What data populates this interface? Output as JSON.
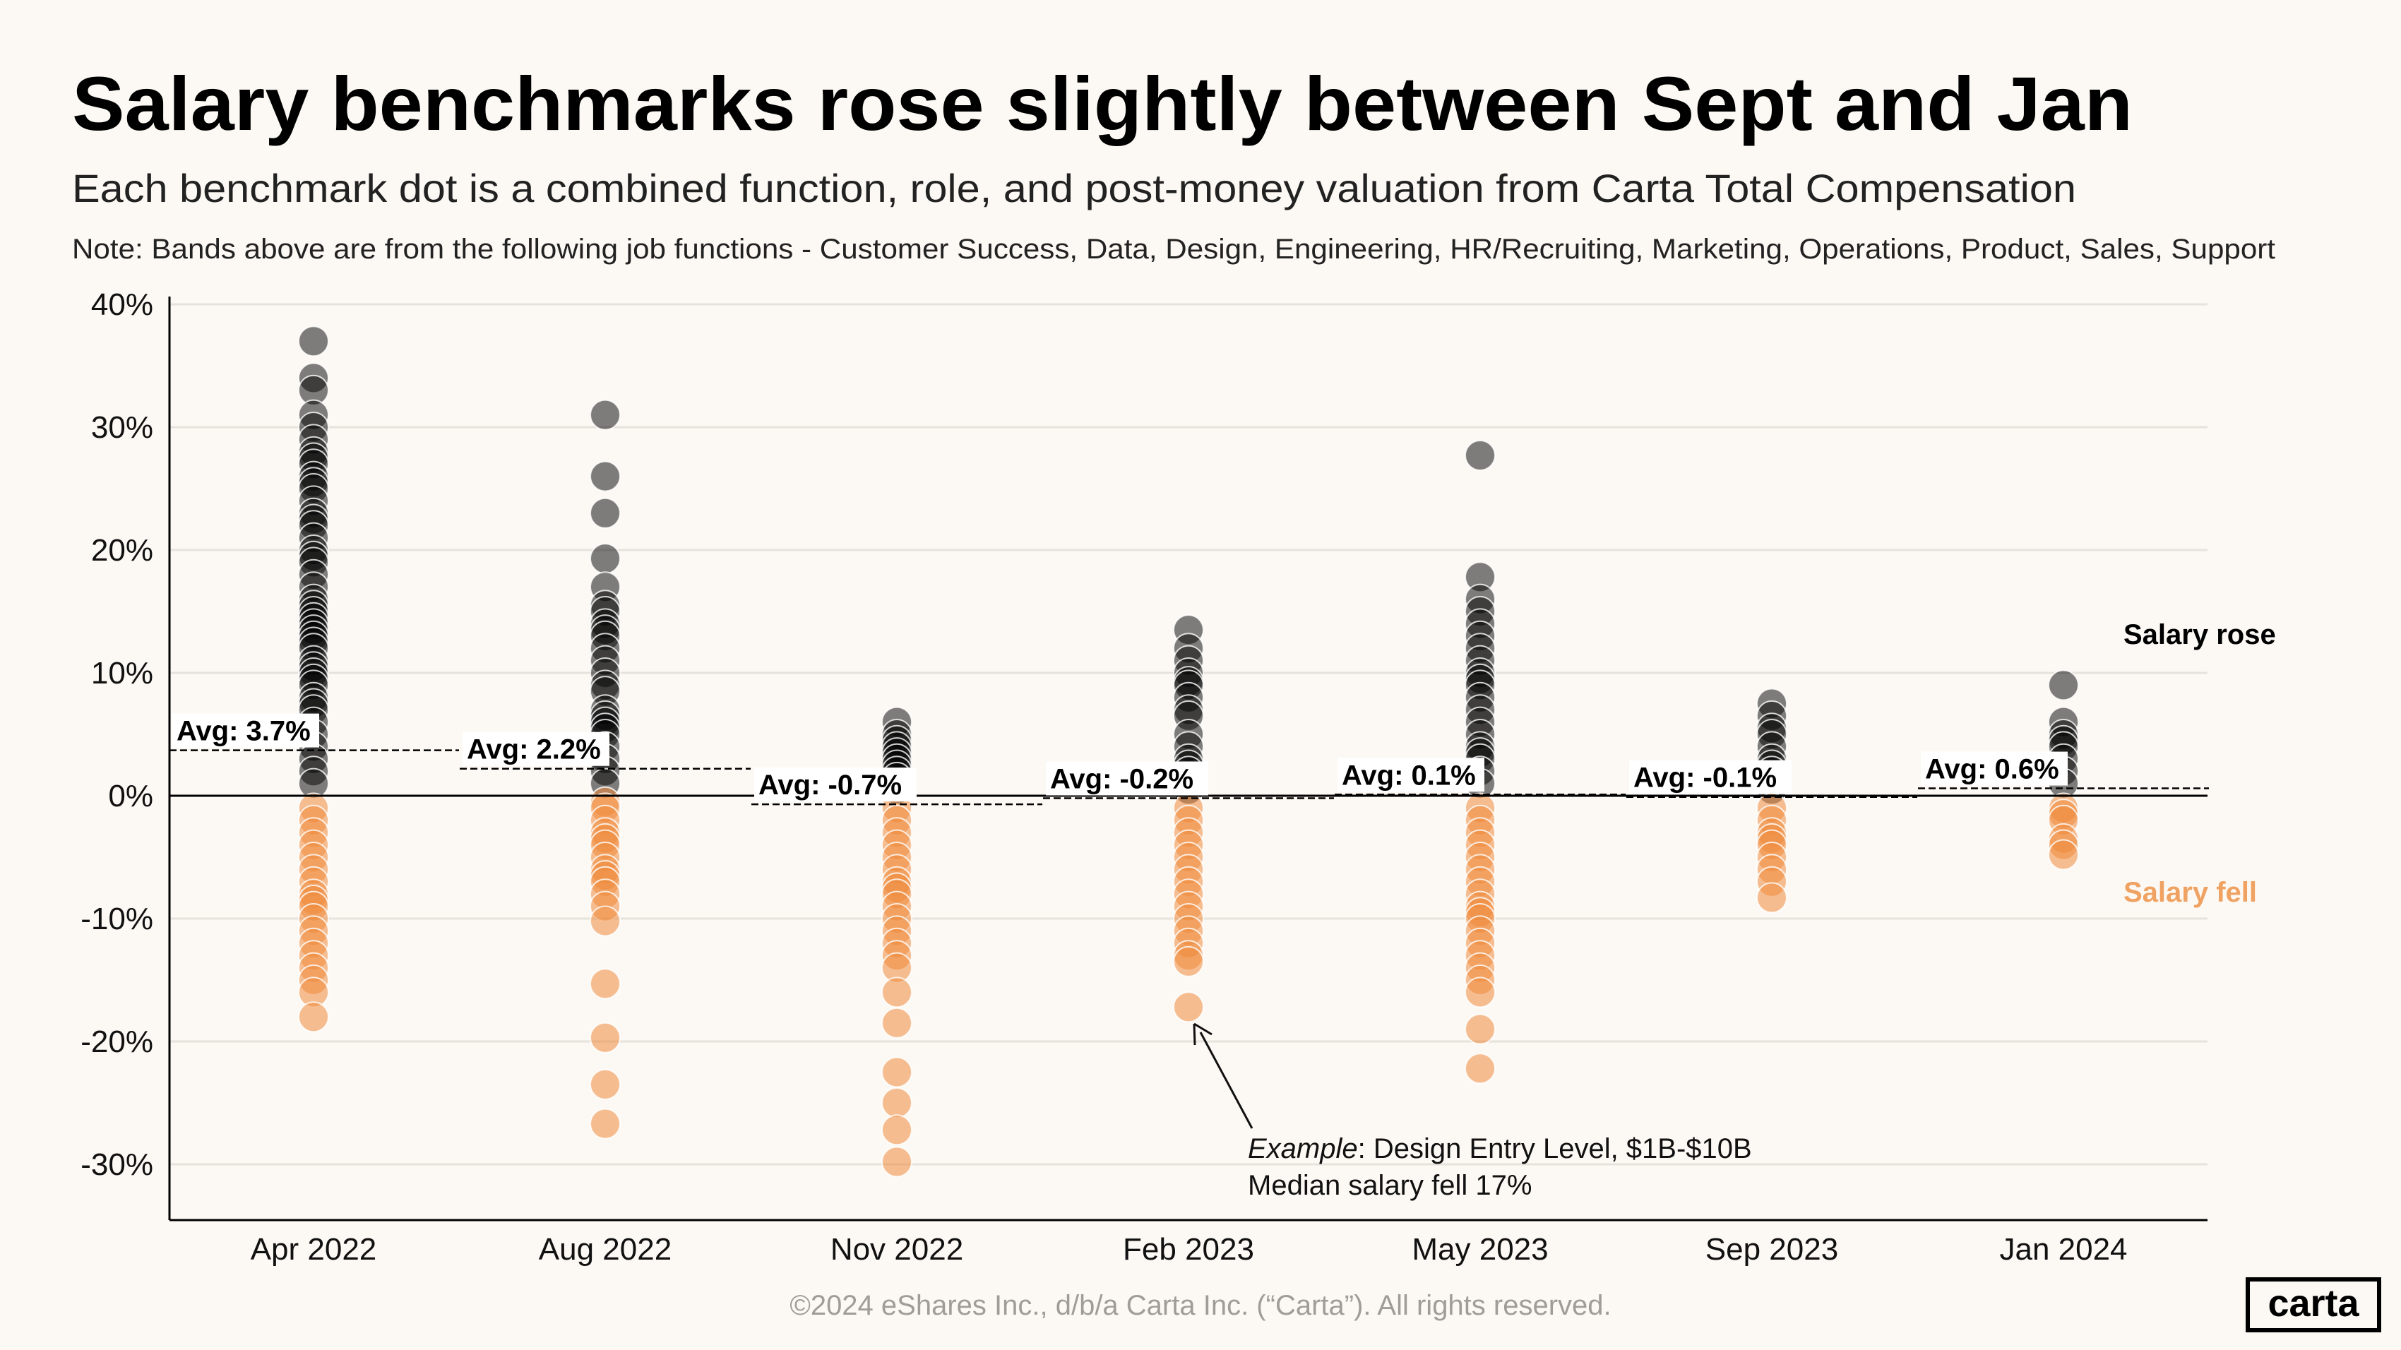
{
  "title": "Salary benchmarks rose slightly between Sept and Jan",
  "subtitle": "Each benchmark dot is a combined function, role, and post-money valuation from Carta Total Compensation",
  "note": "Note:  Bands above are from the following job functions - Customer Success, Data, Design, Engineering, HR/Recruiting, Marketing, Operations, Product,  Sales, Support",
  "copyright": "©2024 eShares Inc., d/b/a Carta Inc. (“Carta”). All rights reserved.",
  "logo": "carta",
  "colors": {
    "rose": "#000000",
    "fell": "#ee8a3c",
    "fell_label": "#f0a262",
    "background": "#fcf9f4"
  },
  "chart_data": {
    "type": "scatter",
    "title": "Salary benchmarks rose slightly between Sept and Jan",
    "ylim": [
      -30,
      40
    ],
    "yticks": [
      40,
      30,
      20,
      10,
      0,
      -10,
      -20,
      -30
    ],
    "ytick_labels": [
      "40%",
      "30%",
      "20%",
      "10%",
      "0%",
      "-10%",
      "-20%",
      "-30%"
    ],
    "grid": true,
    "categories": [
      "Apr 2022",
      "Aug 2022",
      "Nov 2022",
      "Feb 2023",
      "May 2023",
      "Sep 2023",
      "Jan 2024"
    ],
    "averages": [
      3.7,
      2.2,
      -0.7,
      -0.2,
      0.1,
      -0.1,
      0.6
    ],
    "average_labels": [
      "Avg: 3.7%",
      "Avg: 2.2%",
      "Avg: -0.7%",
      "Avg: -0.2%",
      "Avg: 0.1%",
      "Avg: -0.1%",
      "Avg: 0.6%"
    ],
    "values": [
      [
        37,
        34,
        33,
        31,
        30,
        29,
        28,
        27.5,
        27,
        26,
        25.5,
        25,
        24,
        23,
        22.5,
        22,
        21,
        20,
        19.5,
        19,
        18,
        17,
        16,
        15.5,
        15,
        14.5,
        14,
        13.5,
        13,
        12.5,
        12,
        11,
        10.5,
        10,
        9.5,
        9,
        8,
        7.5,
        7,
        6,
        5,
        4,
        3,
        2,
        1,
        -1,
        -2,
        -3,
        -4,
        -5,
        -6,
        -7,
        -8,
        -8.5,
        -9,
        -10,
        -11,
        -12,
        -13,
        -14,
        -15,
        -16,
        -18
      ],
      [
        31,
        26,
        23,
        19.3,
        17,
        15.5,
        15,
        14,
        13.5,
        13,
        12,
        11,
        10,
        9,
        8.5,
        7,
        6.5,
        6,
        5.5,
        5,
        4,
        3,
        2,
        1,
        -0.5,
        -1,
        -2,
        -3,
        -3.5,
        -4,
        -5,
        -6,
        -6.5,
        -7,
        -8,
        -9,
        -10.2,
        -15.3,
        -19.7,
        -23.5,
        -26.7
      ],
      [
        6,
        5,
        4.5,
        4,
        3.5,
        3,
        2.5,
        2,
        1.5,
        1,
        0.5,
        -1,
        -2,
        -3,
        -4,
        -5,
        -6,
        -7,
        -7.5,
        -8,
        -9,
        -10,
        -11,
        -12,
        -13,
        -14,
        -16,
        -18.5,
        -22.5,
        -25,
        -27.2,
        -29.8
      ],
      [
        13.5,
        12,
        11,
        10,
        9.3,
        9,
        8,
        7,
        6.5,
        5,
        4,
        3,
        2.5,
        2,
        1,
        0.5,
        -1,
        -2,
        -3,
        -4,
        -5,
        -6,
        -7,
        -8,
        -9,
        -10,
        -11,
        -12,
        -13,
        -13.5,
        -17.2
      ],
      [
        27.7,
        17.8,
        16,
        15,
        14,
        13,
        12,
        11,
        10,
        9.5,
        9,
        8,
        7,
        6,
        5,
        4,
        3.5,
        3,
        2,
        1,
        -1,
        -2,
        -3,
        -4,
        -5,
        -6,
        -7,
        -8,
        -9,
        -9.5,
        -10,
        -11,
        -12,
        -13,
        -14,
        -15,
        -16,
        -19,
        -22.2
      ],
      [
        7.5,
        6.5,
        5.5,
        5,
        4,
        3,
        2.5,
        2,
        1,
        0.5,
        -1,
        -2,
        -3,
        -3.5,
        -4,
        -5,
        -6,
        -7,
        -8.3
      ],
      [
        9,
        6,
        5,
        4.5,
        4,
        3,
        2,
        1,
        -1,
        -1.5,
        -2,
        -3.5,
        -4,
        -4.8
      ]
    ],
    "legend": {
      "rose": "Salary rose",
      "fell": "Salary fell",
      "placement": "right"
    },
    "annotation": {
      "line1_italic": "Example",
      "line1_rest": ": Design Entry Level, $1B-$10B",
      "line2": "Median salary fell 17%",
      "target_category": "Feb 2023",
      "target_value": -17.2
    }
  }
}
